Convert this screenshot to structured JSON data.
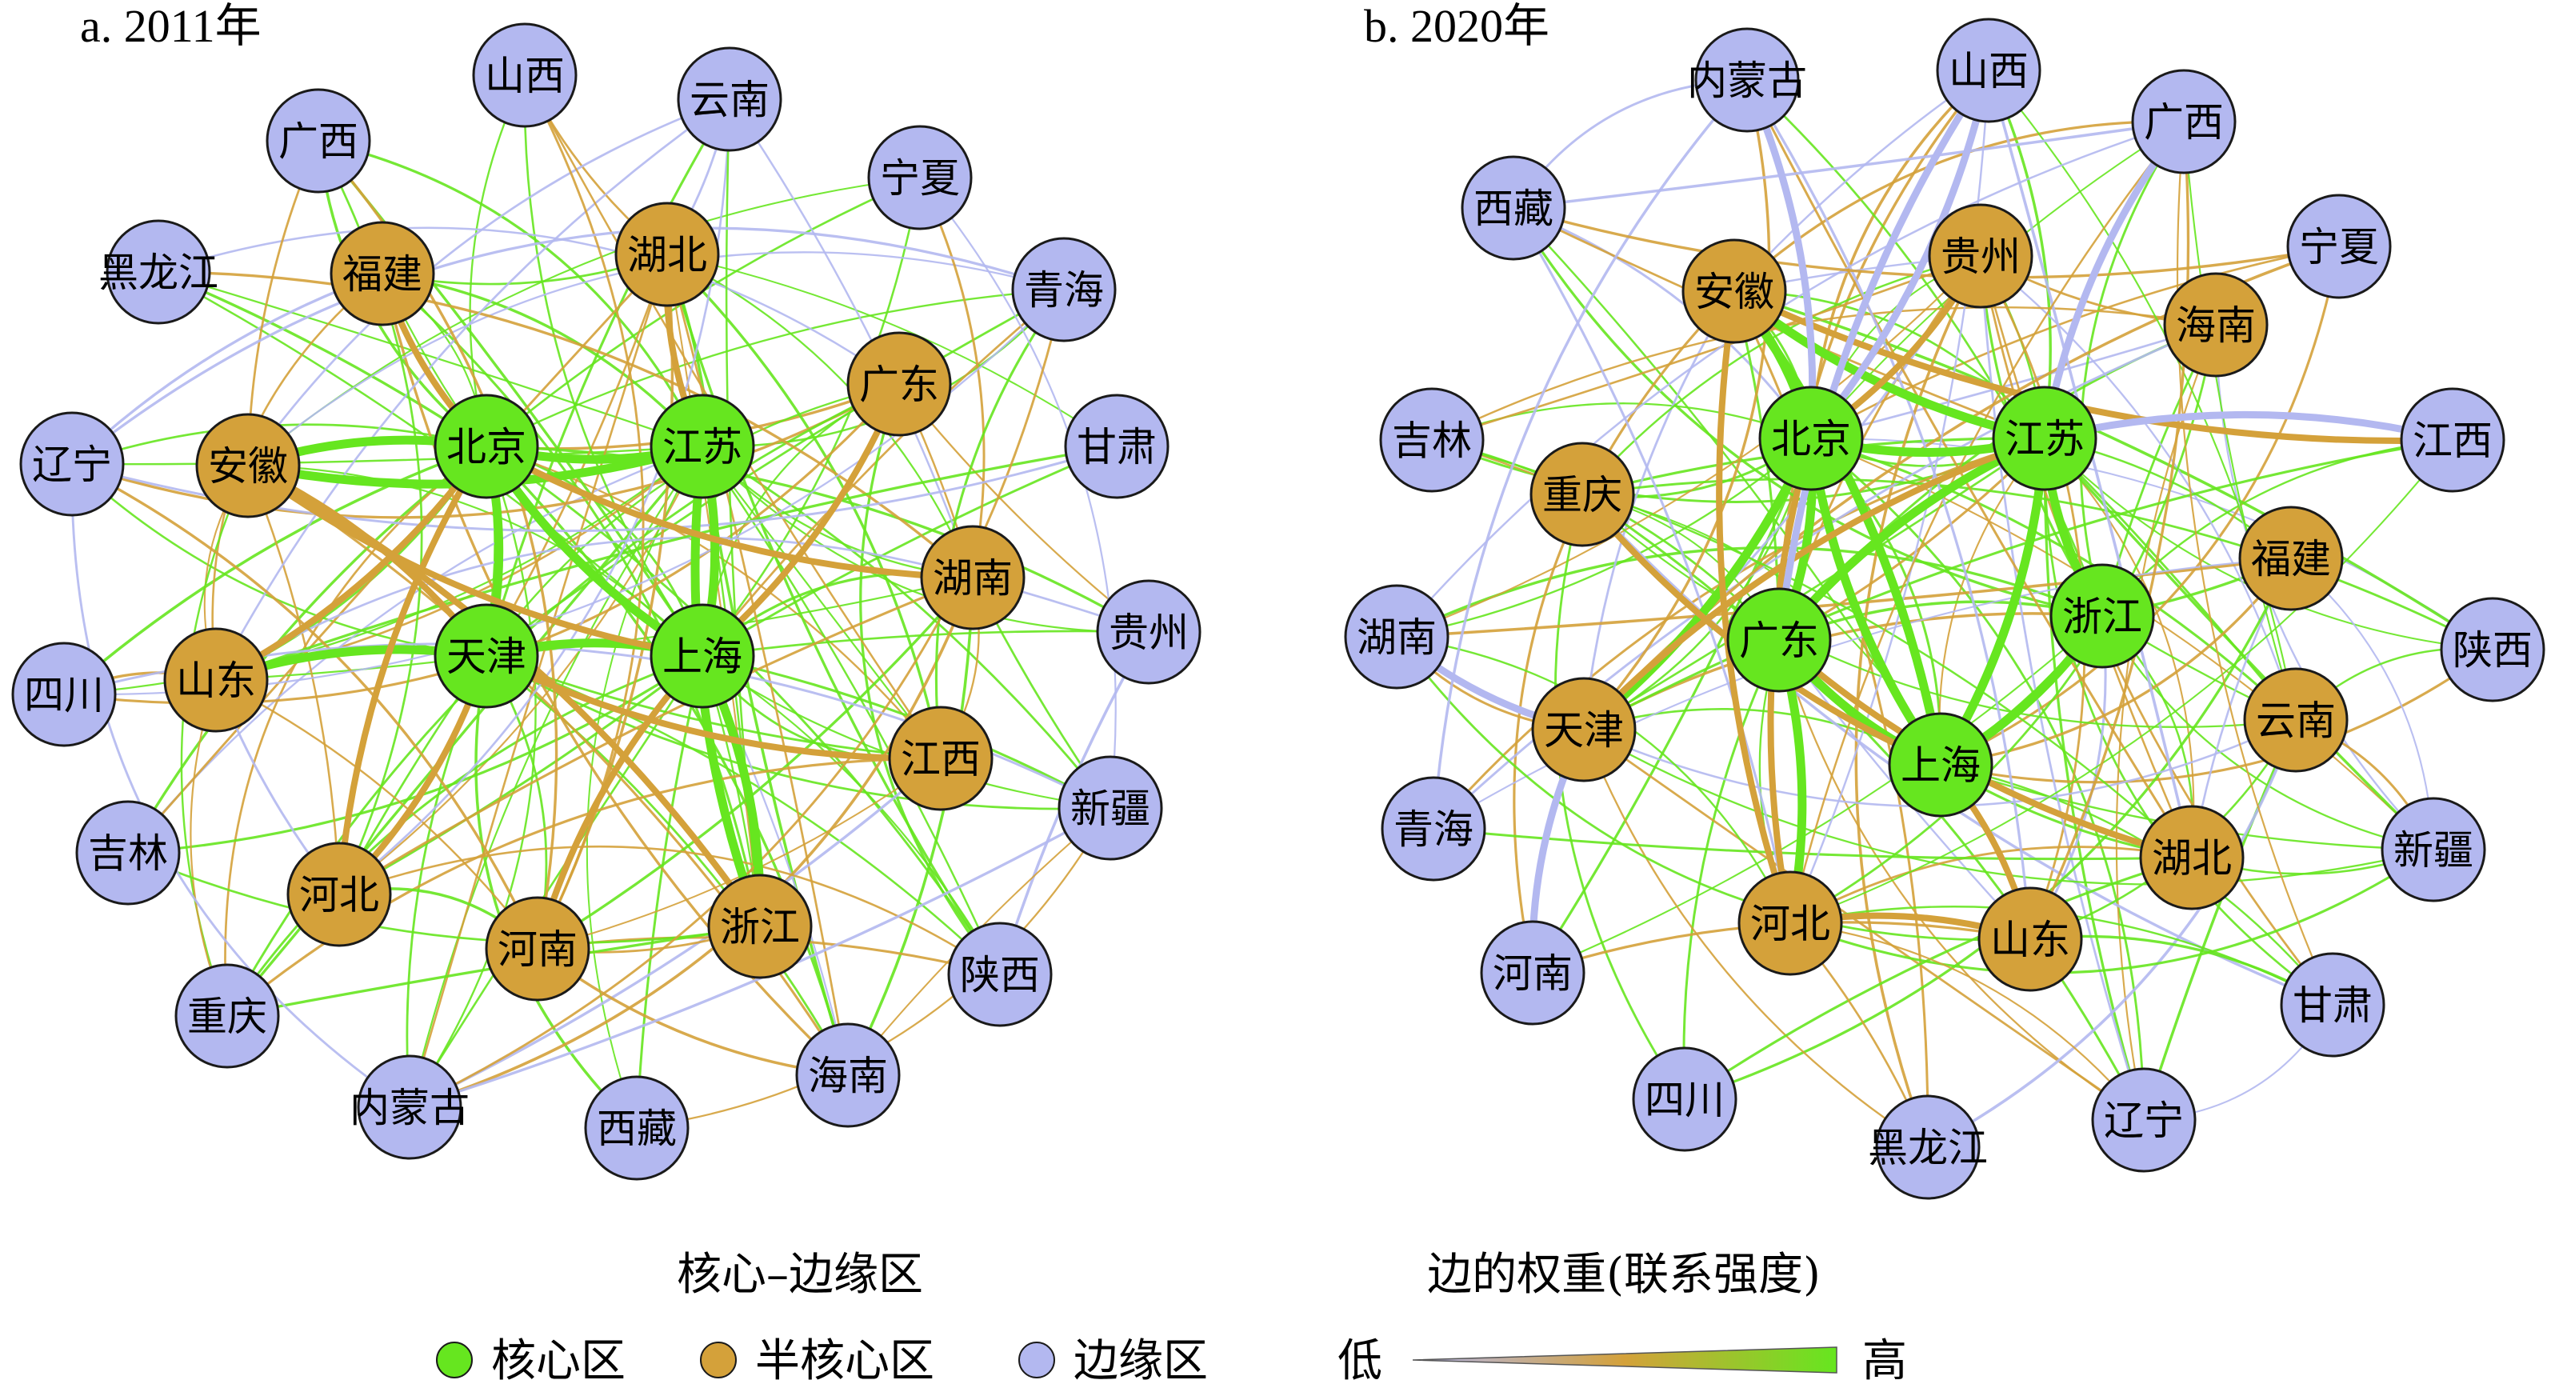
{
  "colors": {
    "core": "#66e61f",
    "semi": "#d4a13a",
    "edge": "#b3b8f0",
    "edge_low": "#b3b8f0",
    "edge_mid": "#d4a13a",
    "edge_high": "#66e61f",
    "node_stroke": "#1a1a1a"
  },
  "panels": [
    {
      "id": "2011",
      "title": "a. 2011年",
      "nodes": [
        {
          "id": "beijing",
          "label": "北京",
          "category": "core"
        },
        {
          "id": "jiangsu",
          "label": "江苏",
          "category": "core"
        },
        {
          "id": "tianjin",
          "label": "天津",
          "category": "core"
        },
        {
          "id": "shanghai",
          "label": "上海",
          "category": "core"
        },
        {
          "id": "fujian",
          "label": "福建",
          "category": "semi"
        },
        {
          "id": "hubei",
          "label": "湖北",
          "category": "semi"
        },
        {
          "id": "guangdong",
          "label": "广东",
          "category": "semi"
        },
        {
          "id": "anhui",
          "label": "安徽",
          "category": "semi"
        },
        {
          "id": "hunan",
          "label": "湖南",
          "category": "semi"
        },
        {
          "id": "shandong",
          "label": "山东",
          "category": "semi"
        },
        {
          "id": "jiangxi",
          "label": "江西",
          "category": "semi"
        },
        {
          "id": "hebei",
          "label": "河北",
          "category": "semi"
        },
        {
          "id": "henan",
          "label": "河南",
          "category": "semi"
        },
        {
          "id": "zhejiang",
          "label": "浙江",
          "category": "semi"
        },
        {
          "id": "shanxi",
          "label": "山西",
          "category": "edge"
        },
        {
          "id": "yunnan",
          "label": "云南",
          "category": "edge"
        },
        {
          "id": "guangxi",
          "label": "广西",
          "category": "edge"
        },
        {
          "id": "ningxia",
          "label": "宁夏",
          "category": "edge"
        },
        {
          "id": "heilongjiang",
          "label": "黑龙江",
          "category": "edge"
        },
        {
          "id": "qinghai",
          "label": "青海",
          "category": "edge"
        },
        {
          "id": "liaoning",
          "label": "辽宁",
          "category": "edge"
        },
        {
          "id": "gansu",
          "label": "甘肃",
          "category": "edge"
        },
        {
          "id": "guizhou",
          "label": "贵州",
          "category": "edge"
        },
        {
          "id": "sichuan",
          "label": "四川",
          "category": "edge"
        },
        {
          "id": "xinjiang",
          "label": "新疆",
          "category": "edge"
        },
        {
          "id": "jilin",
          "label": "吉林",
          "category": "edge"
        },
        {
          "id": "shaanxi",
          "label": "陕西",
          "category": "edge"
        },
        {
          "id": "chongqing",
          "label": "重庆",
          "category": "edge"
        },
        {
          "id": "hainan",
          "label": "海南",
          "category": "edge"
        },
        {
          "id": "neimenggu",
          "label": "内蒙古",
          "category": "edge"
        },
        {
          "id": "xizang",
          "label": "西藏",
          "category": "edge"
        }
      ],
      "strong_edges": [
        {
          "source": "anhui",
          "target": "jiangsu",
          "strength": "high"
        },
        {
          "source": "anhui",
          "target": "beijing",
          "strength": "high"
        },
        {
          "source": "beijing",
          "target": "jiangsu",
          "strength": "high"
        },
        {
          "source": "beijing",
          "target": "tianjin",
          "strength": "high"
        },
        {
          "source": "beijing",
          "target": "shanghai",
          "strength": "high"
        },
        {
          "source": "jiangsu",
          "target": "shanghai",
          "strength": "high"
        },
        {
          "source": "jiangsu",
          "target": "zhejiang",
          "strength": "high"
        },
        {
          "source": "tianjin",
          "target": "shanghai",
          "strength": "high"
        },
        {
          "source": "tianjin",
          "target": "shandong",
          "strength": "high"
        },
        {
          "source": "shanghai",
          "target": "zhejiang",
          "strength": "high"
        },
        {
          "source": "anhui",
          "target": "shanghai",
          "strength": "mid"
        },
        {
          "source": "anhui",
          "target": "tianjin",
          "strength": "mid"
        },
        {
          "source": "shandong",
          "target": "beijing",
          "strength": "mid"
        },
        {
          "source": "hebei",
          "target": "beijing",
          "strength": "mid"
        },
        {
          "source": "hebei",
          "target": "tianjin",
          "strength": "mid"
        },
        {
          "source": "guangdong",
          "target": "shanghai",
          "strength": "mid"
        },
        {
          "source": "hubei",
          "target": "jiangsu",
          "strength": "mid"
        },
        {
          "source": "henan",
          "target": "shanghai",
          "strength": "mid"
        },
        {
          "source": "zhejiang",
          "target": "anhui",
          "strength": "mid"
        },
        {
          "source": "jiangxi",
          "target": "tianjin",
          "strength": "mid"
        },
        {
          "source": "fujian",
          "target": "beijing",
          "strength": "mid"
        },
        {
          "source": "hunan",
          "target": "beijing",
          "strength": "mid"
        }
      ]
    },
    {
      "id": "2020",
      "title": "b. 2020年",
      "nodes": [
        {
          "id": "beijing",
          "label": "北京",
          "category": "core"
        },
        {
          "id": "jiangsu",
          "label": "江苏",
          "category": "core"
        },
        {
          "id": "guangdong",
          "label": "广东",
          "category": "core"
        },
        {
          "id": "zhejiang",
          "label": "浙江",
          "category": "core"
        },
        {
          "id": "shanghai",
          "label": "上海",
          "category": "core"
        },
        {
          "id": "anhui",
          "label": "安徽",
          "category": "semi"
        },
        {
          "id": "guizhou",
          "label": "贵州",
          "category": "semi"
        },
        {
          "id": "hainan",
          "label": "海南",
          "category": "semi"
        },
        {
          "id": "chongqing",
          "label": "重庆",
          "category": "semi"
        },
        {
          "id": "fujian",
          "label": "福建",
          "category": "semi"
        },
        {
          "id": "tianjin",
          "label": "天津",
          "category": "semi"
        },
        {
          "id": "yunnan",
          "label": "云南",
          "category": "semi"
        },
        {
          "id": "hubei",
          "label": "湖北",
          "category": "semi"
        },
        {
          "id": "hebei",
          "label": "河北",
          "category": "semi"
        },
        {
          "id": "shandong",
          "label": "山东",
          "category": "semi"
        },
        {
          "id": "neimenggu",
          "label": "内蒙古",
          "category": "edge"
        },
        {
          "id": "shanxi",
          "label": "山西",
          "category": "edge"
        },
        {
          "id": "guangxi",
          "label": "广西",
          "category": "edge"
        },
        {
          "id": "xizang",
          "label": "西藏",
          "category": "edge"
        },
        {
          "id": "ningxia",
          "label": "宁夏",
          "category": "edge"
        },
        {
          "id": "jilin",
          "label": "吉林",
          "category": "edge"
        },
        {
          "id": "jiangxi",
          "label": "江西",
          "category": "edge"
        },
        {
          "id": "hunan",
          "label": "湖南",
          "category": "edge"
        },
        {
          "id": "shaanxi",
          "label": "陕西",
          "category": "edge"
        },
        {
          "id": "qinghai",
          "label": "青海",
          "category": "edge"
        },
        {
          "id": "xinjiang",
          "label": "新疆",
          "category": "edge"
        },
        {
          "id": "henan",
          "label": "河南",
          "category": "edge"
        },
        {
          "id": "gansu",
          "label": "甘肃",
          "category": "edge"
        },
        {
          "id": "sichuan",
          "label": "四川",
          "category": "edge"
        },
        {
          "id": "liaoning",
          "label": "辽宁",
          "category": "edge"
        },
        {
          "id": "heilongjiang",
          "label": "黑龙江",
          "category": "edge"
        }
      ],
      "strong_edges": [
        {
          "source": "anhui",
          "target": "jiangsu",
          "strength": "high"
        },
        {
          "source": "anhui",
          "target": "beijing",
          "strength": "high"
        },
        {
          "source": "beijing",
          "target": "jiangsu",
          "strength": "high"
        },
        {
          "source": "beijing",
          "target": "guangdong",
          "strength": "high"
        },
        {
          "source": "beijing",
          "target": "shanghai",
          "strength": "high"
        },
        {
          "source": "jiangsu",
          "target": "shanghai",
          "strength": "high"
        },
        {
          "source": "jiangsu",
          "target": "zhejiang",
          "strength": "high"
        },
        {
          "source": "zhejiang",
          "target": "shanghai",
          "strength": "high"
        },
        {
          "source": "guangdong",
          "target": "shanghai",
          "strength": "high"
        },
        {
          "source": "guangdong",
          "target": "hebei",
          "strength": "high"
        },
        {
          "source": "tianjin",
          "target": "beijing",
          "strength": "high"
        },
        {
          "source": "anhui",
          "target": "shanghai",
          "strength": "high"
        },
        {
          "source": "jiangsu",
          "target": "guangdong",
          "strength": "high"
        },
        {
          "source": "hebei",
          "target": "beijing",
          "strength": "mid"
        },
        {
          "source": "anhui",
          "target": "hebei",
          "strength": "mid"
        },
        {
          "source": "tianjin",
          "target": "jiangsu",
          "strength": "mid"
        },
        {
          "source": "chongqing",
          "target": "shanghai",
          "strength": "mid"
        },
        {
          "source": "guizhou",
          "target": "beijing",
          "strength": "mid"
        },
        {
          "source": "shandong",
          "target": "shanghai",
          "strength": "mid"
        },
        {
          "source": "hubei",
          "target": "guangdong",
          "strength": "mid"
        },
        {
          "source": "anhui",
          "target": "jiangxi",
          "strength": "mid"
        },
        {
          "source": "hebei",
          "target": "shandong",
          "strength": "mid"
        },
        {
          "source": "shanxi",
          "target": "guangdong",
          "strength": "low_thick"
        },
        {
          "source": "shanxi",
          "target": "beijing",
          "strength": "low_thick"
        },
        {
          "source": "guangxi",
          "target": "jiangsu",
          "strength": "low_thick"
        },
        {
          "source": "neimenggu",
          "target": "beijing",
          "strength": "low_thick"
        },
        {
          "source": "jiangxi",
          "target": "jiangsu",
          "strength": "low_thick"
        },
        {
          "source": "henan",
          "target": "tianjin",
          "strength": "low_thick"
        },
        {
          "source": "hunan",
          "target": "tianjin",
          "strength": "low_thick"
        }
      ]
    }
  ],
  "legend": {
    "region_title": "核心–边缘区",
    "region_items": [
      {
        "label": "核心区",
        "category": "core"
      },
      {
        "label": "半核心区",
        "category": "semi"
      },
      {
        "label": "边缘区",
        "category": "edge"
      }
    ],
    "weight_title": "边的权重(联系强度)",
    "weight_low": "低",
    "weight_high": "高"
  }
}
